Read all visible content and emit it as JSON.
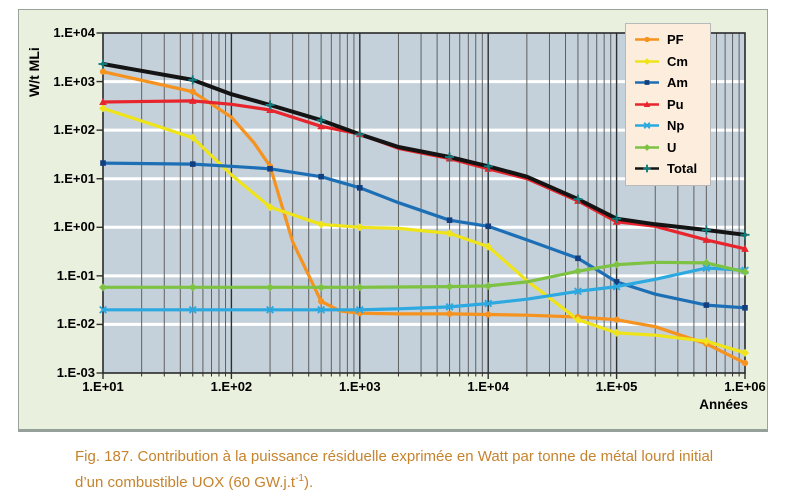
{
  "colors": {
    "figure_bg": "#EAF0DE",
    "plot_bg": "#C4D0DA",
    "grid_white": "#FFFFFF",
    "grid_minor": "#606060",
    "grid_major": "#2E2E2E",
    "plot_border": "#2A2A2A",
    "legend_bg": "#FDEDDC",
    "legend_border": "#B9B9B9",
    "caption_text": "#C6832D",
    "tick_text": "#000000"
  },
  "caption": {
    "prefix": "Fig. 187. Contribution à la puissance résiduelle exprimée en Watt par tonne de métal lourd initial d’un combustible UOX (60 GW.j.t",
    "superscript": "-1",
    "suffix": ")."
  },
  "chart_data": {
    "type": "line",
    "title": "",
    "xlabel": "Années",
    "ylabel": "W/t MLi",
    "x_scale": "log",
    "y_scale": "log",
    "x_range": [
      10,
      1000000
    ],
    "y_range": [
      0.001,
      10000
    ],
    "x_ticks": [
      "1.E+01",
      "1.E+02",
      "1.E+03",
      "1.E+04",
      "1.E+05",
      "1.E+06"
    ],
    "y_ticks": [
      "1.E+04",
      "1.E+03",
      "1.E+02",
      "1.E+01",
      "1.E+00",
      "1.E-01",
      "1.E-02",
      "1.E-03"
    ],
    "grid": "minor-vertical-dark, major-horizontal-white",
    "legend_position": "top-right",
    "marker_x": [
      10,
      50,
      200,
      500,
      1000,
      5000,
      10000,
      50000,
      100000,
      500000,
      1000000
    ],
    "series": [
      {
        "name": "PF",
        "color": "#F6921E",
        "marker": "circle",
        "x": [
          10,
          50,
          100,
          150,
          200,
          300,
          500,
          700,
          1000,
          2000,
          5000,
          10000,
          20000,
          50000,
          100000,
          200000,
          500000,
          1000000
        ],
        "y": [
          1600,
          620,
          185,
          55,
          18,
          0.5,
          0.03,
          0.019,
          0.017,
          0.0165,
          0.0165,
          0.016,
          0.0155,
          0.0142,
          0.0125,
          0.009,
          0.004,
          0.0016
        ]
      },
      {
        "name": "Cm",
        "color": "#EFE419",
        "marker": "diamond",
        "x": [
          10,
          50,
          100,
          200,
          500,
          1000,
          2000,
          5000,
          10000,
          20000,
          50000,
          100000,
          200000,
          500000,
          1000000
        ],
        "y": [
          280,
          70,
          12,
          2.6,
          1.15,
          1.0,
          0.95,
          0.75,
          0.4,
          0.08,
          0.0125,
          0.0067,
          0.006,
          0.0045,
          0.0026
        ]
      },
      {
        "name": "Am",
        "color": "#1D6FB5",
        "marker": "square",
        "marker_color": "#123F80",
        "x": [
          10,
          50,
          100,
          200,
          500,
          1000,
          2000,
          5000,
          10000,
          20000,
          50000,
          100000,
          200000,
          500000,
          1000000
        ],
        "y": [
          21,
          20,
          18,
          16,
          11,
          6.5,
          3.2,
          1.4,
          1.05,
          0.55,
          0.23,
          0.075,
          0.042,
          0.025,
          0.022
        ]
      },
      {
        "name": "Pu",
        "color": "#E8242C",
        "marker": "triangle",
        "x": [
          10,
          50,
          100,
          200,
          500,
          1000,
          2000,
          5000,
          10000,
          20000,
          50000,
          100000,
          200000,
          500000,
          1000000
        ],
        "y": [
          380,
          400,
          340,
          260,
          120,
          83,
          42,
          26,
          16,
          10,
          3.5,
          1.3,
          1.05,
          0.55,
          0.36
        ]
      },
      {
        "name": "Np",
        "color": "#2BA9E0",
        "marker": "x",
        "x": [
          10,
          50,
          100,
          200,
          500,
          1000,
          2000,
          5000,
          10000,
          20000,
          50000,
          100000,
          200000,
          500000,
          1000000
        ],
        "y": [
          0.02,
          0.02,
          0.02,
          0.02,
          0.02,
          0.02,
          0.021,
          0.023,
          0.027,
          0.033,
          0.048,
          0.06,
          0.085,
          0.145,
          0.13
        ]
      },
      {
        "name": "U",
        "color": "#7DC242",
        "marker": "diamond",
        "x": [
          10,
          50,
          100,
          200,
          500,
          1000,
          2000,
          5000,
          10000,
          20000,
          50000,
          100000,
          200000,
          500000,
          1000000
        ],
        "y": [
          0.058,
          0.058,
          0.058,
          0.058,
          0.058,
          0.058,
          0.059,
          0.06,
          0.062,
          0.075,
          0.125,
          0.17,
          0.19,
          0.185,
          0.12
        ]
      },
      {
        "name": "Total",
        "color": "#141414",
        "marker": "plus",
        "marker_color": "#0E7C7C",
        "x": [
          10,
          50,
          100,
          200,
          500,
          1000,
          2000,
          5000,
          10000,
          20000,
          50000,
          100000,
          200000,
          500000,
          1000000
        ],
        "y": [
          2300,
          1080,
          550,
          330,
          160,
          82,
          45,
          28,
          18,
          11,
          3.8,
          1.5,
          1.15,
          0.88,
          0.7
        ]
      }
    ]
  }
}
